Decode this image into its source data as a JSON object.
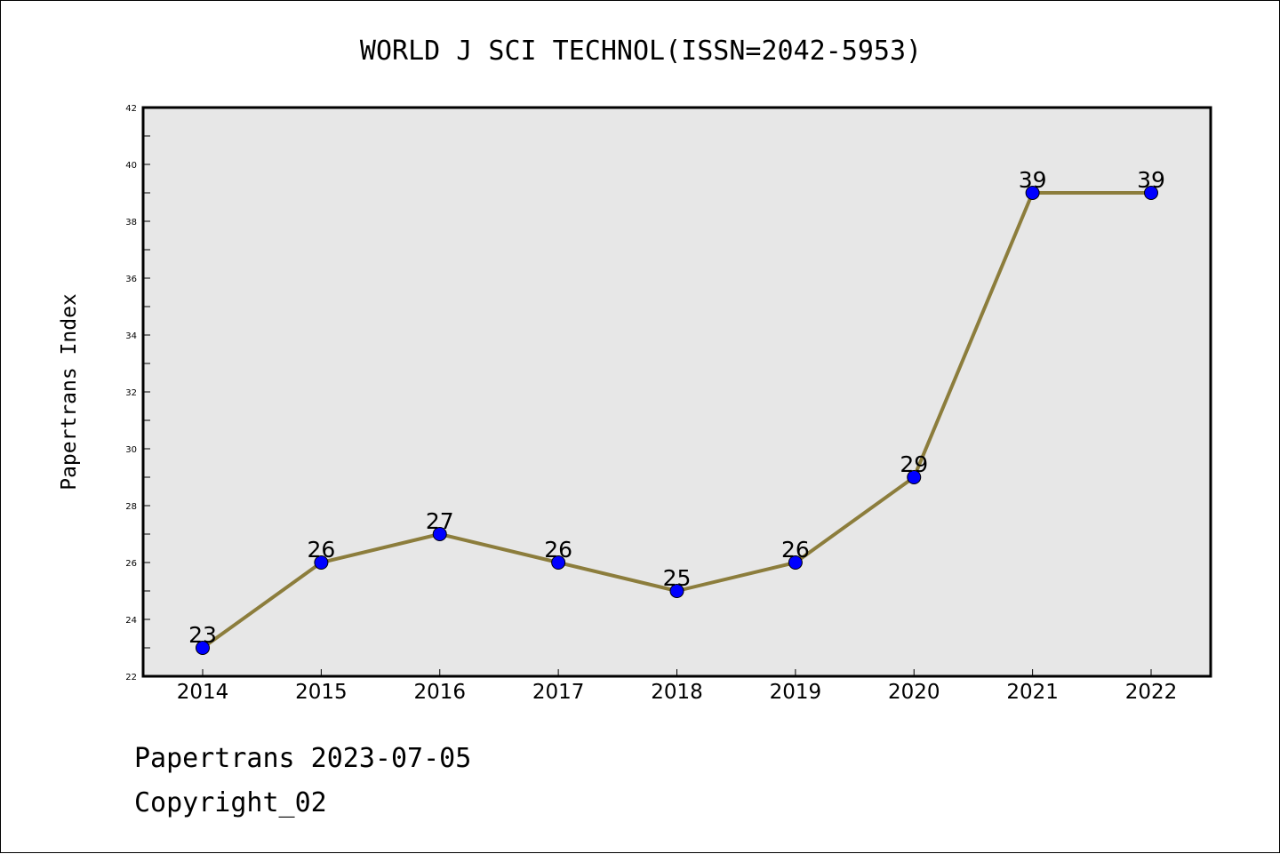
{
  "footer": {
    "line1": "Papertrans 2023-07-05",
    "line2": "Copyright_02"
  },
  "chart_data": {
    "type": "line",
    "title": "WORLD J SCI TECHNOL(ISSN=2042-5953)",
    "xlabel": "",
    "ylabel": "Papertrans Index",
    "categories": [
      "2014",
      "2015",
      "2016",
      "2017",
      "2018",
      "2019",
      "2020",
      "2021",
      "2022"
    ],
    "series": [
      {
        "values": [
          23,
          26,
          27,
          26,
          25,
          26,
          29,
          39,
          39
        ]
      }
    ],
    "ylim": [
      22,
      42
    ],
    "yticks": [
      22,
      24,
      26,
      28,
      30,
      32,
      34,
      36,
      38,
      40,
      42
    ],
    "data_labels": true,
    "grid": false,
    "legend": "none",
    "colors": {
      "plot_background": "#e7e7e7",
      "line": "#8c7d3c",
      "marker": "#0000ff"
    }
  }
}
